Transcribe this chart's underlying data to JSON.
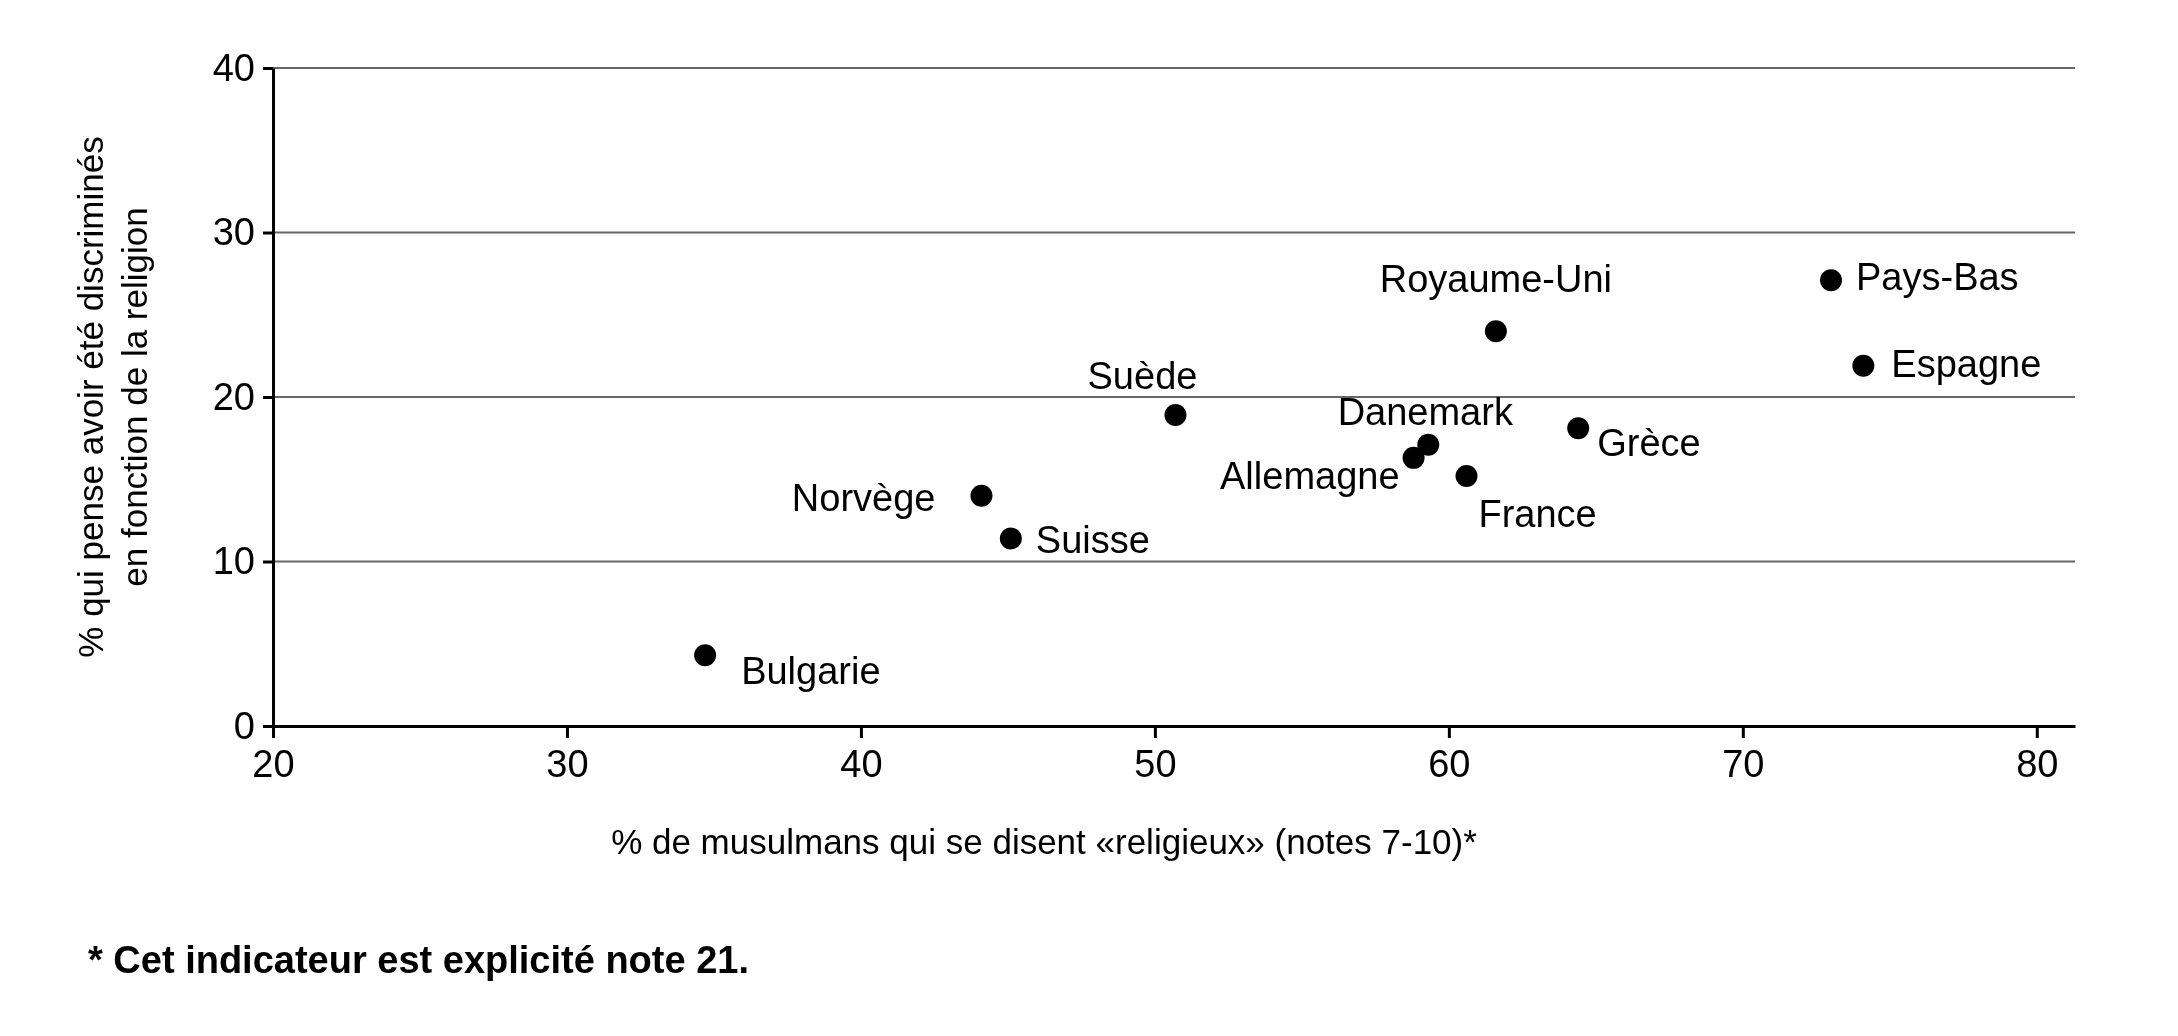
{
  "chart_data": {
    "type": "scatter",
    "xlabel": "% de musulmans qui se disent «religieux» (notes 7-10)*",
    "ylabel": "% qui pense avoir été discriminés\nen fonction de la religion",
    "x": [
      34.7,
      44.1,
      45.1,
      50.7,
      58.8,
      59.3,
      60.6,
      61.6,
      64.4,
      73.0,
      74.1
    ],
    "values": [
      4.3,
      14.0,
      11.4,
      18.9,
      16.3,
      17.1,
      15.2,
      24.0,
      18.1,
      27.1,
      21.9
    ],
    "color": "#000000",
    "marker": "circle",
    "xlim": [
      20,
      81.3
    ],
    "xticks": [
      20,
      30,
      40,
      50,
      60,
      70,
      80
    ],
    "ylim": [
      0,
      40
    ],
    "yticks": [
      0,
      10,
      20,
      30,
      40
    ],
    "grid": "y",
    "annotations": [
      {
        "text": "Bulgarie",
        "x": 34.7,
        "y": 4.3
      },
      {
        "text": "Norvège",
        "x": 44.1,
        "y": 14.0
      },
      {
        "text": "Suisse",
        "x": 45.1,
        "y": 11.4
      },
      {
        "text": "Suède",
        "x": 50.7,
        "y": 18.9
      },
      {
        "text": "Allemagne",
        "x": 58.8,
        "y": 16.3
      },
      {
        "text": "Danemark",
        "x": 59.3,
        "y": 17.1
      },
      {
        "text": "France",
        "x": 60.6,
        "y": 15.2
      },
      {
        "text": "Royaume-Uni",
        "x": 61.6,
        "y": 24.0
      },
      {
        "text": "Grèce",
        "x": 64.4,
        "y": 18.1
      },
      {
        "text": "Pays-Bas",
        "x": 73.0,
        "y": 27.1
      },
      {
        "text": "Espagne",
        "x": 74.1,
        "y": 21.9
      },
      "* Cet indicateur est explicité note 21."
    ]
  }
}
